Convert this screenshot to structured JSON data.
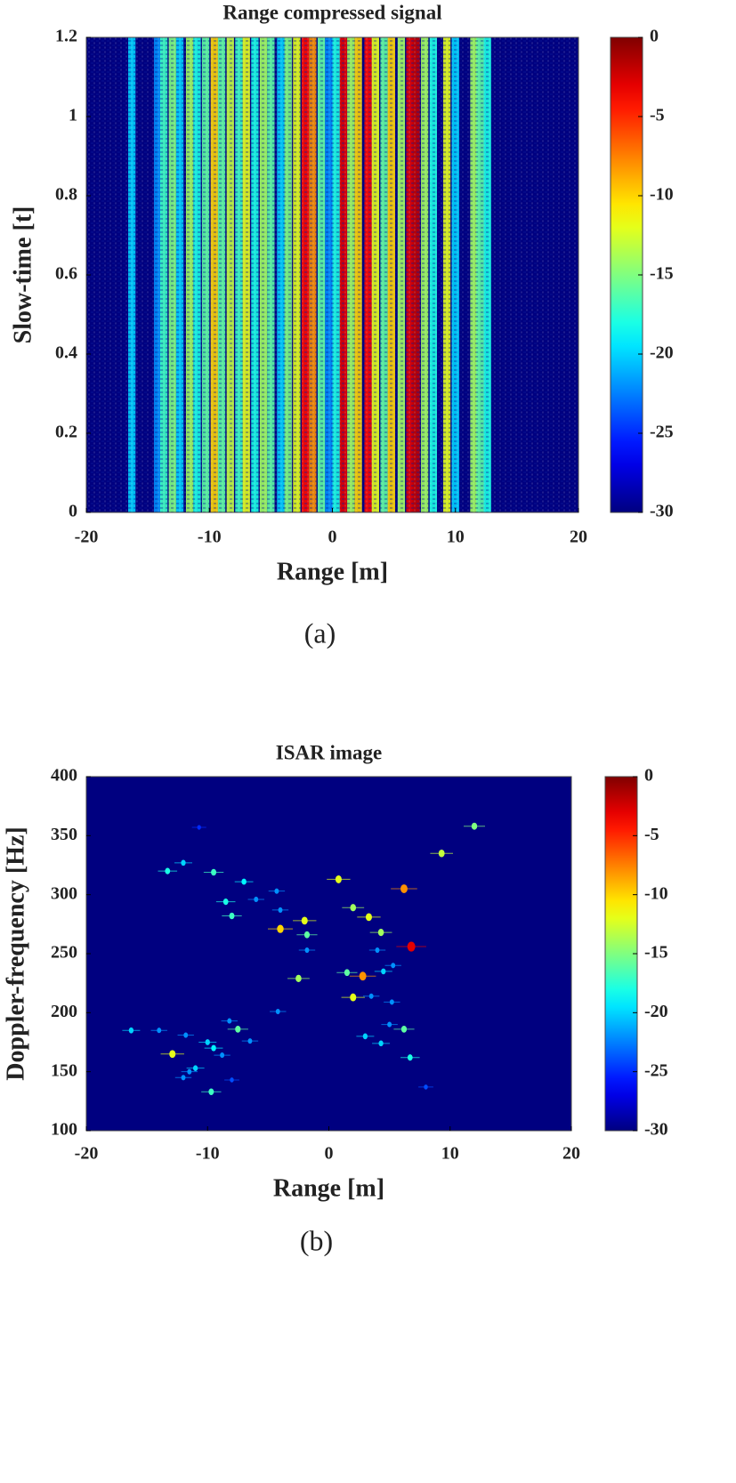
{
  "chart_data": [
    {
      "type": "heatmap",
      "title": "Range compressed signal",
      "x_label": "Range [m]",
      "y_label": "Slow-time [t]",
      "caption": "(a)",
      "colormap": "jet",
      "clim": [
        -30,
        0
      ],
      "cticks": [
        0,
        -5,
        -10,
        -15,
        -20,
        -25,
        -30
      ],
      "xlim": [
        -20,
        20
      ],
      "xticks": [
        -20,
        -10,
        0,
        10,
        20
      ],
      "ylim": [
        0,
        1.2
      ],
      "yticks": [
        0,
        0.2,
        0.4,
        0.6,
        0.8,
        1,
        1.2
      ],
      "x": [
        -16.3,
        -14.2,
        -13.7,
        -13.0,
        -12.4,
        -11.6,
        -11.0,
        -10.3,
        -9.6,
        -9.0,
        -8.3,
        -7.6,
        -7.0,
        -6.3,
        -5.6,
        -5.0,
        -4.2,
        -3.6,
        -2.9,
        -2.2,
        -1.6,
        -0.9,
        -0.3,
        0.3,
        0.9,
        1.5,
        2.1,
        2.9,
        3.5,
        4.2,
        4.8,
        5.6,
        6.3,
        6.8,
        7.5,
        8.2,
        9.3,
        10.0,
        11.5,
        12.0,
        12.6
      ],
      "values": [
        -20,
        -22,
        -17,
        -15,
        -20,
        -14,
        -18,
        -16,
        -10,
        -16,
        -13,
        -17,
        -12,
        -18,
        -14,
        -16,
        -20,
        -15,
        -12,
        -4,
        -8,
        -16,
        -22,
        -18,
        -3,
        -14,
        -10,
        -4,
        -12,
        -16,
        -10,
        -14,
        -3,
        -2,
        -14,
        -18,
        -12,
        -20,
        -14,
        -16,
        -18
      ]
    },
    {
      "type": "scatter",
      "title": "ISAR image",
      "x_label": "Range [m]",
      "y_label": "Doppler-frequency [Hz]",
      "caption": "(b)",
      "colormap": "jet",
      "clim": [
        -30,
        0
      ],
      "cticks": [
        0,
        -5,
        -10,
        -15,
        -20,
        -25,
        -30
      ],
      "xlim": [
        -20,
        20
      ],
      "xticks": [
        -20,
        -10,
        0,
        10,
        20
      ],
      "ylim": [
        100,
        400
      ],
      "yticks": [
        100,
        150,
        200,
        250,
        300,
        350,
        400
      ],
      "x": [
        12.0,
        9.3,
        -12.0,
        -13.3,
        -9.5,
        -7.0,
        0.8,
        -4.3,
        -8.5,
        -6.0,
        6.2,
        2.0,
        -8.0,
        -4.0,
        3.3,
        -2.0,
        -4.0,
        4.3,
        -1.8,
        6.8,
        -1.8,
        4.0,
        5.3,
        1.5,
        2.8,
        -2.5,
        4.5,
        2.0,
        3.5,
        5.2,
        -4.2,
        -8.2,
        -7.5,
        6.2,
        5.0,
        -16.3,
        -14.0,
        -11.8,
        -10.0,
        -6.5,
        3.0,
        4.3,
        -9.5,
        -12.9,
        -8.8,
        6.7,
        -11.0,
        -11.5,
        -12.0,
        -8.0,
        -9.7,
        8.0,
        -10.7
      ],
      "y": [
        358,
        335,
        327,
        320,
        319,
        311,
        313,
        303,
        294,
        296,
        305,
        289,
        282,
        287,
        281,
        278,
        271,
        268,
        266,
        256,
        253,
        253,
        240,
        234,
        231,
        229,
        235,
        213,
        214,
        209,
        201,
        193,
        186,
        186,
        190,
        185,
        185,
        181,
        175,
        176,
        180,
        174,
        170,
        165,
        164,
        162,
        153,
        150,
        145,
        143,
        133,
        137,
        357
      ],
      "values": [
        -15,
        -13,
        -20,
        -18,
        -17,
        -19,
        -12,
        -22,
        -18,
        -22,
        -8,
        -14,
        -17,
        -22,
        -12,
        -12,
        -10,
        -14,
        -16,
        -3,
        -22,
        -22,
        -22,
        -16,
        -8,
        -14,
        -20,
        -12,
        -22,
        -22,
        -22,
        -22,
        -16,
        -16,
        -22,
        -20,
        -22,
        -22,
        -20,
        -22,
        -20,
        -20,
        -19,
        -12,
        -22,
        -18,
        -20,
        -22,
        -22,
        -24,
        -17,
        -24,
        -25
      ]
    }
  ]
}
